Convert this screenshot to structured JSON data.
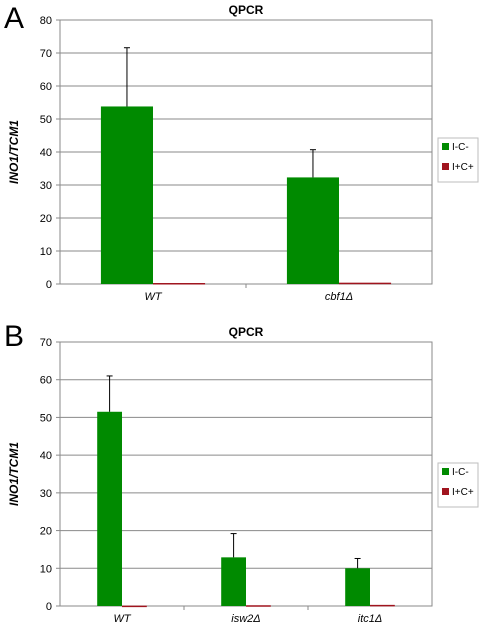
{
  "panels": [
    {
      "letter": "A",
      "chart_data": {
        "type": "bar",
        "title": "QPCR",
        "ylabel": "INO1/TCM1",
        "xlabel": "",
        "categories": [
          "WT",
          "cbf1Δ"
        ],
        "ylim": [
          0,
          80
        ],
        "yticks": [
          0,
          10,
          20,
          30,
          40,
          50,
          60,
          70,
          80
        ],
        "grid": true,
        "legend_position": "right",
        "series": [
          {
            "name": "I-C-",
            "color": "#008a00",
            "values": [
              53.8,
              32.3
            ],
            "errors": [
              17.8,
              8.4
            ]
          },
          {
            "name": "I+C+",
            "color": "#a0141e",
            "values": [
              0.3,
              0.4
            ],
            "errors": [
              0,
              0
            ]
          }
        ]
      }
    },
    {
      "letter": "B",
      "chart_data": {
        "type": "bar",
        "title": "QPCR",
        "ylabel": "INO1/TCM1",
        "xlabel": "",
        "categories": [
          "WT",
          "isw2Δ",
          "itc1Δ"
        ],
        "ylim": [
          0,
          70
        ],
        "yticks": [
          0,
          10,
          20,
          30,
          40,
          50,
          60,
          70
        ],
        "grid": true,
        "legend_position": "right",
        "series": [
          {
            "name": "I-C-",
            "color": "#008a00",
            "values": [
              51.5,
              12.9,
              10.0
            ],
            "errors": [
              9.5,
              6.3,
              2.6
            ]
          },
          {
            "name": "I+C+",
            "color": "#a0141e",
            "values": [
              0.1,
              0.2,
              0.3
            ],
            "errors": [
              0,
              0,
              0
            ]
          }
        ]
      }
    }
  ]
}
